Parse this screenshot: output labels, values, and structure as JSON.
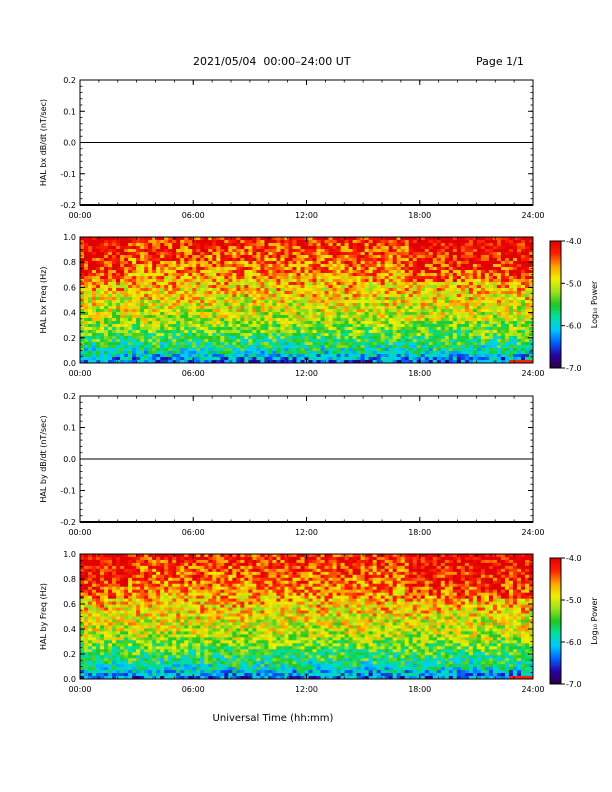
{
  "header": {
    "date_range": "2021/05/04  00:00–24:00 UT",
    "page": "Page 1/1"
  },
  "xlabel": "Universal Time (hh:mm)",
  "colorbar": {
    "label": "Log₁₀ Power",
    "ticks": [
      "-4.0",
      "-5.0",
      "-6.0",
      "-7.0"
    ],
    "range": [
      -7.0,
      -4.0
    ],
    "colormap": [
      "#2a0040",
      "#2a00a8",
      "#0060ff",
      "#00c8ff",
      "#00e0a0",
      "#20c820",
      "#a0e020",
      "#f0f000",
      "#ffa000",
      "#ff2000",
      "#e00000"
    ]
  },
  "chart_data": [
    {
      "type": "line",
      "ylabel": "HAL bx dB/dt (nT/sec)",
      "xlim": [
        "00:00",
        "24:00"
      ],
      "ylim": [
        -0.2,
        0.2
      ],
      "x_ticks": [
        "00:00",
        "06:00",
        "12:00",
        "18:00",
        "24:00"
      ],
      "y_ticks": [
        "0.2",
        "0.1",
        "0.0",
        "-0.1",
        "-0.2"
      ],
      "series": [
        {
          "x": [
            "00:00",
            "24:00"
          ],
          "values": [
            0.0,
            0.0
          ]
        }
      ]
    },
    {
      "type": "heatmap",
      "ylabel": "HAL bx Freq (Hz)",
      "xlim": [
        "00:00",
        "24:00"
      ],
      "ylim": [
        0.0,
        1.0
      ],
      "x_ticks": [
        "00:00",
        "06:00",
        "12:00",
        "18:00",
        "24:00"
      ],
      "y_ticks": [
        "1.0",
        "0.8",
        "0.6",
        "0.4",
        "0.2",
        "0.0"
      ],
      "value_range": [
        -7.0,
        -4.0
      ]
    },
    {
      "type": "line",
      "ylabel": "HAL by dB/dt (nT/sec)",
      "xlim": [
        "00:00",
        "24:00"
      ],
      "ylim": [
        -0.2,
        0.2
      ],
      "x_ticks": [
        "00:00",
        "06:00",
        "12:00",
        "18:00",
        "24:00"
      ],
      "y_ticks": [
        "0.2",
        "0.1",
        "0.0",
        "-0.1",
        "-0.2"
      ],
      "series": [
        {
          "x": [
            "00:00",
            "24:00"
          ],
          "values": [
            0.0,
            0.0
          ]
        }
      ]
    },
    {
      "type": "heatmap",
      "ylabel": "HAL by Freq (Hz)",
      "xlim": [
        "00:00",
        "24:00"
      ],
      "ylim": [
        0.0,
        1.0
      ],
      "x_ticks": [
        "00:00",
        "06:00",
        "12:00",
        "18:00",
        "24:00"
      ],
      "y_ticks": [
        "1.0",
        "0.8",
        "0.6",
        "0.4",
        "0.2",
        "0.0"
      ],
      "value_range": [
        -7.0,
        -4.0
      ]
    }
  ]
}
